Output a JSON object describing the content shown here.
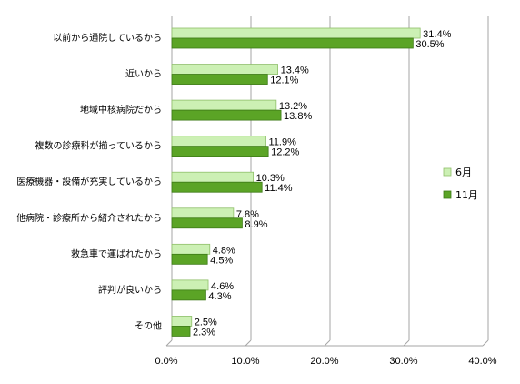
{
  "chart_data": {
    "type": "bar",
    "orientation": "horizontal",
    "categories": [
      "以前から通院しているから",
      "近いから",
      "地域中核病院だから",
      "複数の診療科が揃っているから",
      "医療機器・設備が充実しているから",
      "他病院・診療所から紹介されたから",
      "救急車で運ばれたから",
      "評判が良いから",
      "その他"
    ],
    "series": [
      {
        "name": "6月",
        "color": "#ccf0b4",
        "values": [
          31.4,
          13.4,
          13.2,
          11.9,
          10.3,
          7.8,
          4.8,
          4.6,
          2.5
        ],
        "labels": [
          "31.4%",
          "13.4%",
          "13.2%",
          "11.9%",
          "10.3%",
          "7.8%",
          "4.8%",
          "4.6%",
          "2.5%"
        ]
      },
      {
        "name": "11月",
        "color": "#5ba426",
        "values": [
          30.5,
          12.1,
          13.8,
          12.2,
          11.4,
          8.9,
          4.5,
          4.3,
          2.3
        ],
        "labels": [
          "30.5%",
          "12.1%",
          "13.8%",
          "12.2%",
          "11.4%",
          "8.9%",
          "4.5%",
          "4.3%",
          "2.3%"
        ]
      }
    ],
    "xlim": [
      0,
      40
    ],
    "xticks": [
      0,
      10,
      20,
      30,
      40
    ],
    "xtick_labels": [
      "0.0%",
      "10.0%",
      "20.0%",
      "30.0%",
      "40.0%"
    ],
    "grid": true,
    "legend_position": "right",
    "title": "",
    "xlabel": "",
    "ylabel": ""
  }
}
